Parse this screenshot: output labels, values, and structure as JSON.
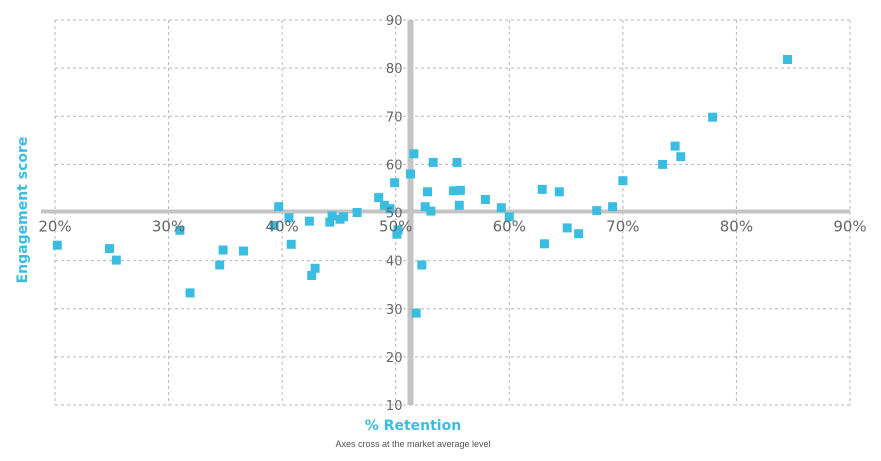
{
  "chart_data": {
    "type": "scatter",
    "xlabel": "% Retention",
    "ylabel": "Engagement score",
    "note": "Axes cross at the market average level",
    "xlim": [
      20,
      90
    ],
    "ylim": [
      10,
      90
    ],
    "x_ticks": [
      20,
      30,
      40,
      50,
      60,
      70,
      80,
      90
    ],
    "x_tick_labels": [
      "20%",
      "30%",
      "40%",
      "50%",
      "60%",
      "70%",
      "80%",
      "90%"
    ],
    "y_ticks": [
      10,
      20,
      30,
      40,
      50,
      60,
      70,
      80,
      90
    ],
    "y_tick_labels": [
      "10",
      "20",
      "30",
      "40",
      "50",
      "60",
      "70",
      "80",
      "90"
    ],
    "cross": {
      "x": 51.3,
      "y": 50.2
    },
    "grid": true,
    "colors": {
      "point": "#3bbde1",
      "axis_title": "#3bbde1",
      "grid": "#b7b7b7",
      "cross_axis": "#c4c4c4"
    },
    "points": [
      [
        20.2,
        43.2
      ],
      [
        24.8,
        42.5
      ],
      [
        25.4,
        40.1
      ],
      [
        31.0,
        46.3
      ],
      [
        31.9,
        33.3
      ],
      [
        34.5,
        39.1
      ],
      [
        34.8,
        42.2
      ],
      [
        36.6,
        42.0
      ],
      [
        39.3,
        47.3
      ],
      [
        39.7,
        51.2
      ],
      [
        40.6,
        48.9
      ],
      [
        40.8,
        43.4
      ],
      [
        42.4,
        48.2
      ],
      [
        42.6,
        36.9
      ],
      [
        42.9,
        38.4
      ],
      [
        44.2,
        48.0
      ],
      [
        44.4,
        49.3
      ],
      [
        45.1,
        48.6
      ],
      [
        45.4,
        49.1
      ],
      [
        46.6,
        50.0
      ],
      [
        48.5,
        53.1
      ],
      [
        49.0,
        51.5
      ],
      [
        49.5,
        50.8
      ],
      [
        49.9,
        56.2
      ],
      [
        50.1,
        45.5
      ],
      [
        50.2,
        46.4
      ],
      [
        51.3,
        58.0
      ],
      [
        51.6,
        62.2
      ],
      [
        51.8,
        29.1
      ],
      [
        52.3,
        39.1
      ],
      [
        52.6,
        51.2
      ],
      [
        52.8,
        54.3
      ],
      [
        53.1,
        50.3
      ],
      [
        53.3,
        60.4
      ],
      [
        55.1,
        54.5
      ],
      [
        55.4,
        60.4
      ],
      [
        55.6,
        51.5
      ],
      [
        55.7,
        54.6
      ],
      [
        57.9,
        52.7
      ],
      [
        59.3,
        51.0
      ],
      [
        60.0,
        49.1
      ],
      [
        62.9,
        54.8
      ],
      [
        63.1,
        43.5
      ],
      [
        64.4,
        54.3
      ],
      [
        65.1,
        46.8
      ],
      [
        66.1,
        45.6
      ],
      [
        67.7,
        50.4
      ],
      [
        69.1,
        51.2
      ],
      [
        70.0,
        56.6
      ],
      [
        73.5,
        60.0
      ],
      [
        74.6,
        63.8
      ],
      [
        75.1,
        61.6
      ],
      [
        77.9,
        69.8
      ],
      [
        84.5,
        81.8
      ]
    ]
  }
}
